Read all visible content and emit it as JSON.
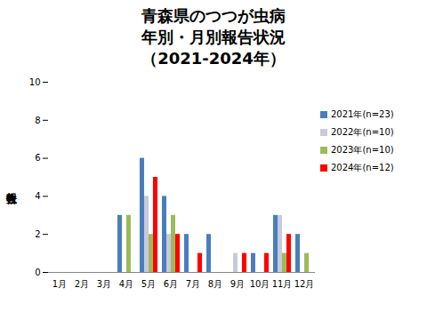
{
  "chart_data": {
    "type": "bar",
    "title": "青森県のつつが虫病",
    "subtitle": "年別・月別報告状況\n（2021-2024年）",
    "y_label": "報告数",
    "categories": [
      "1月",
      "2月",
      "3月",
      "4月",
      "5月",
      "6月",
      "7月",
      "8月",
      "9月",
      "10月",
      "11月",
      "12月"
    ],
    "series": [
      {
        "name": "2021年(n=23)",
        "color": "#4a7ebb",
        "values": [
          0,
          0,
          0,
          3,
          6,
          4,
          2,
          2,
          0,
          1,
          3,
          2
        ]
      },
      {
        "name": "2022年(n=10)",
        "color": "#c9c9dc",
        "values": [
          0,
          0,
          0,
          0,
          4,
          2,
          0,
          0,
          1,
          0,
          3,
          0
        ]
      },
      {
        "name": "2023年(n=10)",
        "color": "#9bbb59",
        "values": [
          0,
          0,
          0,
          3,
          2,
          3,
          0,
          0,
          0,
          0,
          1,
          1
        ]
      },
      {
        "name": "2024年(n=12)",
        "color": "#ff0000",
        "values": [
          0,
          0,
          0,
          0,
          5,
          2,
          1,
          0,
          1,
          1,
          2,
          0
        ]
      }
    ],
    "ylim": [
      0,
      10
    ],
    "yticks": [
      0,
      2,
      4,
      6,
      8,
      10
    ],
    "grid": false,
    "legend": "right"
  }
}
